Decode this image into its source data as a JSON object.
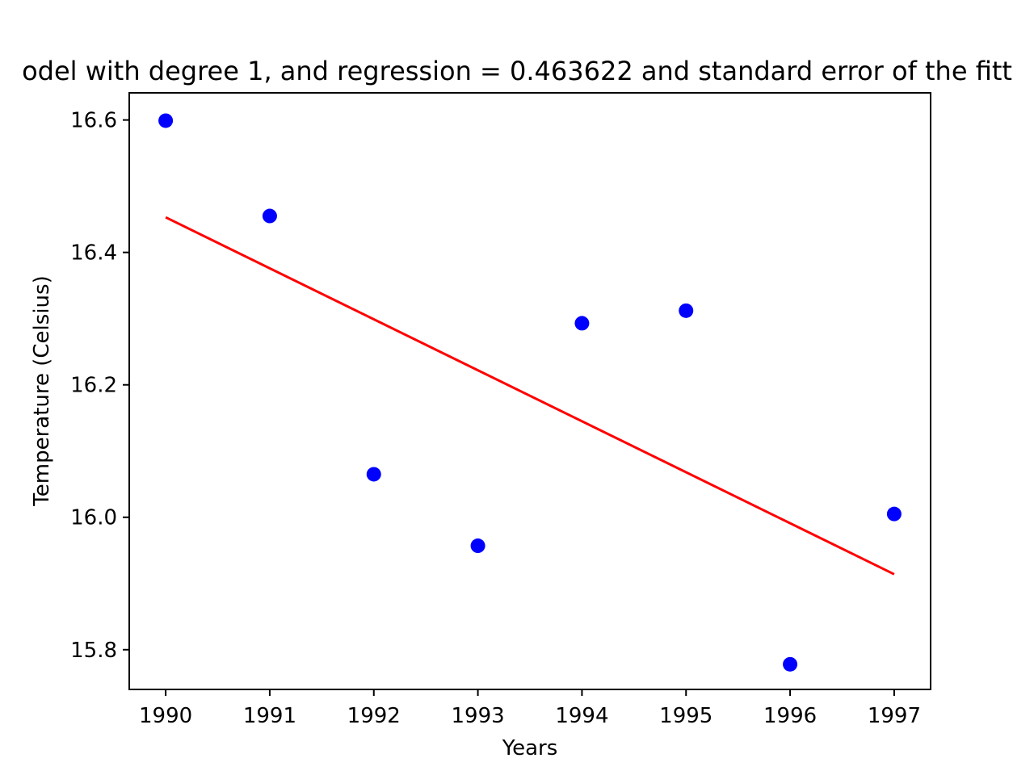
{
  "chart_data": {
    "type": "scatter",
    "title": "odel with degree 1, and regression = 0.463622 and standard error of the fitt",
    "xlabel": "Years",
    "ylabel": "Temperature (Celsius)",
    "xlim": [
      1989.65,
      1997.35
    ],
    "ylim": [
      15.74,
      16.641
    ],
    "x_ticks": [
      1990,
      1991,
      1992,
      1993,
      1994,
      1995,
      1996,
      1997
    ],
    "y_ticks": [
      15.8,
      16.0,
      16.2,
      16.4,
      16.6
    ],
    "y_tick_labels": [
      "15.8",
      "16.0",
      "16.2",
      "16.4",
      "16.6"
    ],
    "grid": false,
    "series": [
      {
        "kind": "points",
        "color": "#0000ff",
        "x": [
          1990,
          1991,
          1992,
          1993,
          1994,
          1995,
          1996,
          1997
        ],
        "y": [
          16.599,
          16.455,
          16.065,
          15.957,
          16.293,
          16.312,
          15.778,
          16.005
        ]
      },
      {
        "kind": "line",
        "color": "#ff0000",
        "x": [
          1990,
          1997
        ],
        "y": [
          16.453,
          15.914
        ]
      }
    ]
  }
}
